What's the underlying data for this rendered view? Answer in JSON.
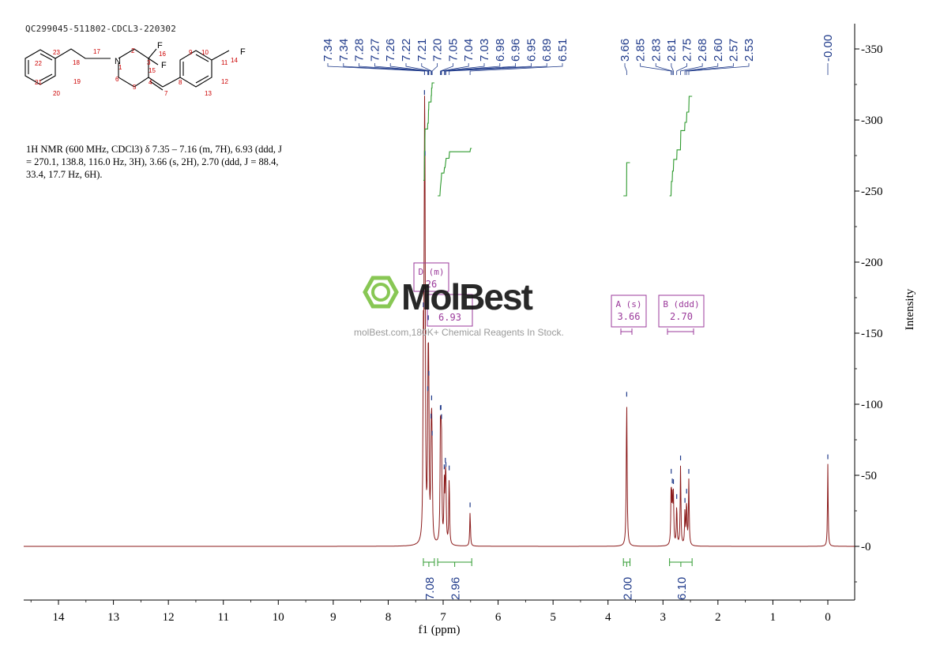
{
  "sample_id": "QC299045-511802-CDCL3-220302",
  "nmr_description": {
    "line1": "1H NMR (600 MHz, CDCl3) δ 7.35 – 7.16 (m, 7H), 6.93 (ddd, J",
    "line2": "= 270.1, 138.8, 116.0 Hz, 3H), 3.66 (s, 2H), 2.70 (ddd, J = 88.4,",
    "line3": "33.4, 17.7 Hz, 6H)."
  },
  "watermark": {
    "brand": "MolBest",
    "tagline": "molBest.com,180K+ Chemical Reagents In Stock."
  },
  "structure_labels": [
    "F",
    "16",
    "F",
    "15",
    "F",
    "14",
    "N",
    "1",
    "2",
    "3",
    "4",
    "5",
    "6",
    "7",
    "8",
    "9",
    "10",
    "11",
    "12",
    "13",
    "17",
    "18",
    "19",
    "20",
    "21",
    "22",
    "23"
  ],
  "colors": {
    "spectrum": "#8b1a1a",
    "peak_labels": "#1f3a8a",
    "integration": "#2e9a2e",
    "multiplet_box": "#9b3a9b",
    "watermark_green": "#7cc242"
  },
  "chart_data": {
    "type": "line",
    "title": "",
    "xlabel": "f1 (ppm)",
    "ylabel": "Intensity",
    "xlim": [
      14.6,
      -0.5
    ],
    "ylim": [
      -40,
      370
    ],
    "x_ticks": [
      14,
      13,
      12,
      11,
      10,
      9,
      8,
      7,
      6,
      5,
      4,
      3,
      2,
      1,
      0
    ],
    "y_ticks": [
      0,
      50,
      100,
      150,
      200,
      250,
      300,
      350
    ],
    "peaks": [
      {
        "x": 7.36,
        "h": 120,
        "w": 0.008
      },
      {
        "x": 7.34,
        "h": 228,
        "w": 0.008
      },
      {
        "x": 7.33,
        "h": 170,
        "w": 0.008
      },
      {
        "x": 7.28,
        "h": 45,
        "w": 0.008
      },
      {
        "x": 7.27,
        "h": 105,
        "w": 0.008
      },
      {
        "x": 7.26,
        "h": 60,
        "w": 0.008
      },
      {
        "x": 7.22,
        "h": 50,
        "w": 0.008
      },
      {
        "x": 7.21,
        "h": 58,
        "w": 0.008
      },
      {
        "x": 7.2,
        "h": 40,
        "w": 0.008
      },
      {
        "x": 7.05,
        "h": 66,
        "w": 0.008
      },
      {
        "x": 7.04,
        "h": 42,
        "w": 0.008
      },
      {
        "x": 7.03,
        "h": 58,
        "w": 0.008
      },
      {
        "x": 6.98,
        "h": 40,
        "w": 0.008
      },
      {
        "x": 6.96,
        "h": 34,
        "w": 0.008
      },
      {
        "x": 6.95,
        "h": 34,
        "w": 0.008
      },
      {
        "x": 6.89,
        "h": 48,
        "w": 0.008
      },
      {
        "x": 6.51,
        "h": 24,
        "w": 0.008
      },
      {
        "x": 3.66,
        "h": 102,
        "w": 0.009
      },
      {
        "x": 2.85,
        "h": 42,
        "w": 0.008
      },
      {
        "x": 2.83,
        "h": 30,
        "w": 0.008
      },
      {
        "x": 2.81,
        "h": 34,
        "w": 0.008
      },
      {
        "x": 2.75,
        "h": 28,
        "w": 0.008
      },
      {
        "x": 2.68,
        "h": 56,
        "w": 0.008
      },
      {
        "x": 2.6,
        "h": 24,
        "w": 0.008
      },
      {
        "x": 2.57,
        "h": 30,
        "w": 0.008
      },
      {
        "x": 2.53,
        "h": 46,
        "w": 0.008
      },
      {
        "x": 0.0,
        "h": 58,
        "w": 0.007
      }
    ],
    "peak_labels": [
      "7.34",
      "7.34",
      "7.28",
      "7.27",
      "7.26",
      "7.22",
      "7.21",
      "7.20",
      "7.05",
      "7.04",
      "7.03",
      "6.98",
      "6.96",
      "6.95",
      "6.89",
      "6.51",
      "3.66",
      "2.85",
      "2.83",
      "2.81",
      "2.75",
      "2.68",
      "2.60",
      "2.57",
      "2.53",
      "-0.00"
    ],
    "integrations": [
      {
        "from": 7.36,
        "to": 7.16,
        "value": "7.08"
      },
      {
        "from": 7.1,
        "to": 6.48,
        "value": "2.96"
      },
      {
        "from": 3.72,
        "to": 3.6,
        "value": "2.00"
      },
      {
        "from": 2.88,
        "to": 2.47,
        "value": "6.10"
      }
    ],
    "multiplets": [
      {
        "label": "D (m)",
        "shift": "26"
      },
      {
        "label": "",
        "shift": "6.93"
      },
      {
        "label": "A (s)",
        "shift": "3.66"
      },
      {
        "label": "B (ddd)",
        "shift": "2.70"
      }
    ]
  }
}
